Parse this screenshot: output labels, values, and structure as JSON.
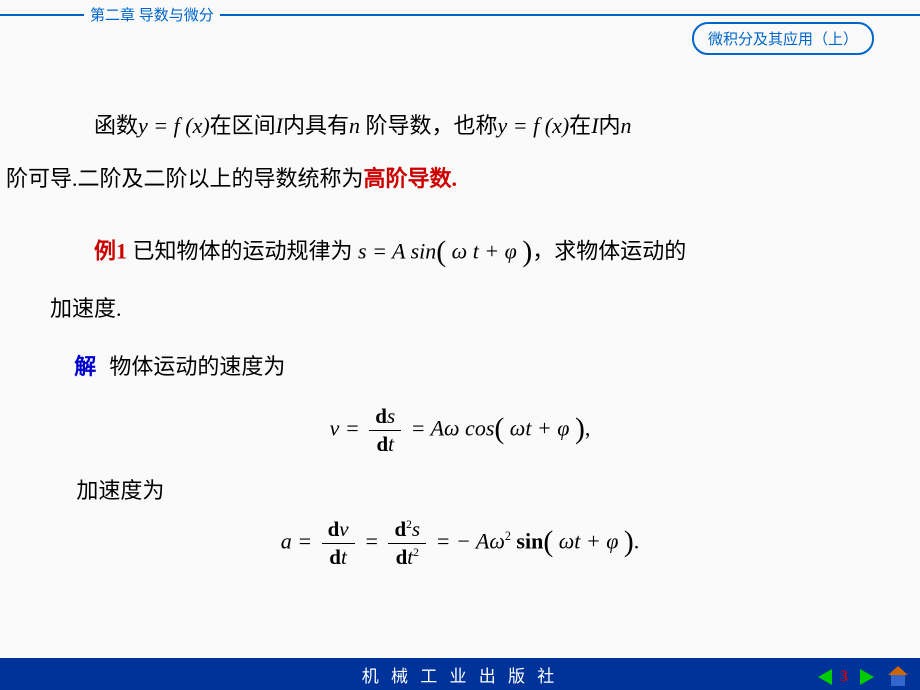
{
  "header": {
    "chapter": "第二章  导数与微分",
    "book_title": "微积分及其应用（上）"
  },
  "content": {
    "para1_a": "函数",
    "para1_b": "y = f (x)",
    "para1_c": "在区间",
    "para1_d": "I",
    "para1_e": "内具有",
    "para1_f": "n",
    "para1_g": " 阶导数，也称",
    "para1_h": "y = f (x)",
    "para1_i": "在",
    "para1_j": "I",
    "para1_k": "内",
    "para1_l": "n",
    "para1_m": "阶可导.二阶及二阶以上的导数统称为",
    "para1_n": "高阶导数.",
    "example_label": "例1",
    "ex_a": " 已知物体的运动规律为",
    "ex_formula1": " s  =  A sin",
    "ex_paren_open": "(",
    "ex_formula2": " ω t  +  φ ",
    "ex_paren_close": ")",
    "ex_b": "，求物体运动的",
    "ex_c": "加速度.",
    "sol_label": "解",
    "sol_a": "物体运动的速度为",
    "formula_v_lhs": "v  = ",
    "formula_v_num": "ds",
    "formula_v_den": "dt",
    "formula_v_mid": " =  Aω cos",
    "formula_v_in": " ωt  +  φ ",
    "formula_v_end": ",",
    "accel_label": "加速度为",
    "formula_a_lhs": "a  = ",
    "formula_a_num1": "dv",
    "formula_a_den1": "dt",
    "formula_a_eq": " = ",
    "formula_a_num2_d": "d",
    "formula_a_num2_s": "s",
    "formula_a_den2_d": "d",
    "formula_a_den2_t": "t",
    "formula_a_rhs": " =  − Aω",
    "formula_a_sin": " sin",
    "formula_a_in": " ωt  +  φ ",
    "formula_a_end": "."
  },
  "footer": {
    "publisher": "机 械 工 业 出 版 社",
    "page_number": "3"
  },
  "colors": {
    "header_blue": "#0066cc",
    "body_text": "#000000",
    "red_accent": "#cc0000",
    "blue_accent": "#0000cc",
    "footer_bg": "#003399",
    "nav_green": "#00cc00",
    "home_roof": "#cc6600",
    "home_body": "#3366cc",
    "background": "#fafafa"
  },
  "fonts": {
    "body_size_pt": 22,
    "header_size_pt": 15,
    "footer_size_pt": 17
  }
}
